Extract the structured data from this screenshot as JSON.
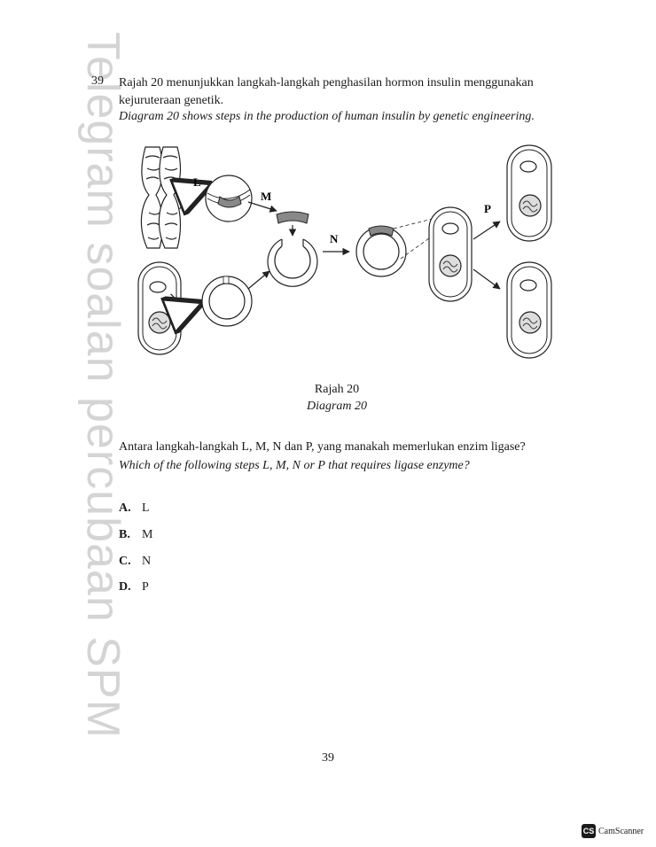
{
  "watermark": "Telegram soalan percubaan SPM",
  "question": {
    "number": "39",
    "stem_ms": "Rajah 20 menunjukkan langkah-langkah penghasilan hormon insulin menggunakan kejuruteraan genetik.",
    "stem_en": "Diagram 20 shows steps in the production of human insulin by genetic engineering."
  },
  "diagram": {
    "labels": {
      "L": "L",
      "M": "M",
      "N": "N",
      "P": "P"
    },
    "caption_ms": "Rajah 20",
    "caption_en": "Diagram 20"
  },
  "prompt": {
    "ms": "Antara langkah-langkah L, M, N dan P, yang manakah memerlukan enzim ligase?",
    "en": "Which of the following steps L, M, N or P that requires ligase enzyme?"
  },
  "options": [
    {
      "letter": "A.",
      "text": "L"
    },
    {
      "letter": "B.",
      "text": "M"
    },
    {
      "letter": "C.",
      "text": "N"
    },
    {
      "letter": "D.",
      "text": "P"
    }
  ],
  "page_number": "39",
  "scanner": {
    "logo": "CS",
    "name": "CamScanner"
  }
}
